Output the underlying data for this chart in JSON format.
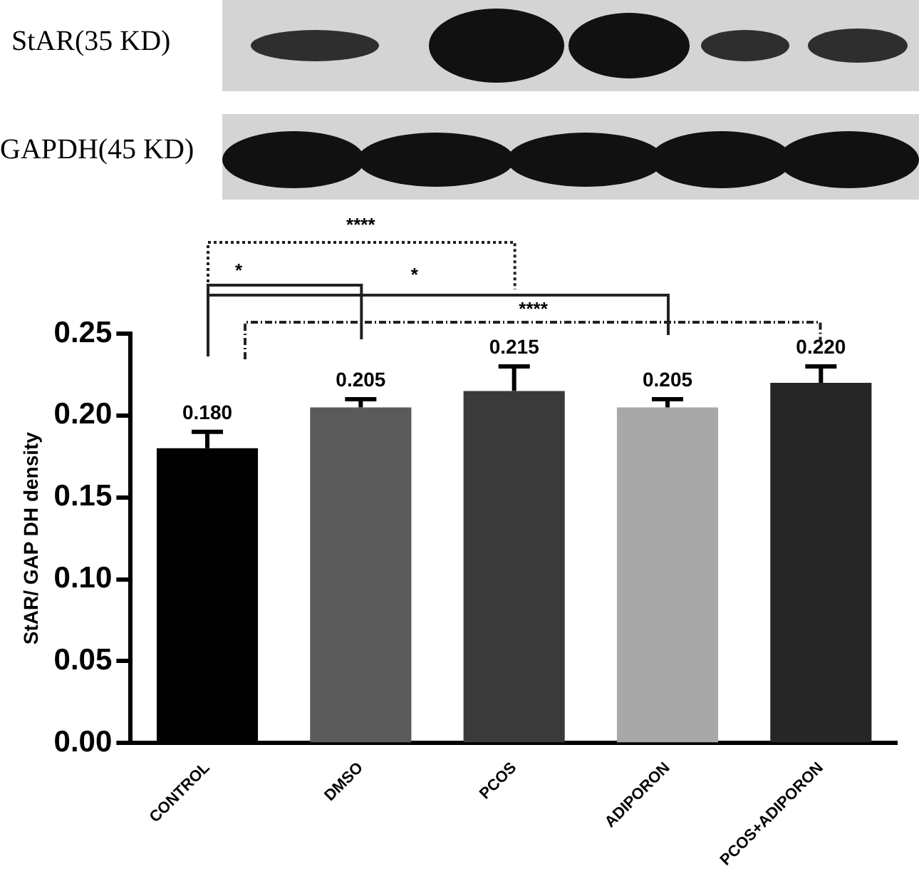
{
  "chart_data": {
    "type": "bar",
    "ylabel": "StAR/ GAP DH density",
    "categories": [
      "CONTROL",
      "DMSO",
      "PCOS",
      "ADIPORON",
      "PCOS+ADIPORON"
    ],
    "values": [
      0.18,
      0.205,
      0.215,
      0.205,
      0.22
    ],
    "colors": [
      "#000000",
      "#5a5a5a",
      "#3a3a3a",
      "#a8a8a8",
      "#262626"
    ],
    "errors": [
      [
        0.18,
        0.19
      ],
      [
        0.205,
        0.21
      ],
      [
        0.215,
        0.23
      ],
      [
        0.205,
        0.21
      ],
      [
        0.22,
        0.23
      ]
    ],
    "value_labels": [
      "0.180",
      "0.205",
      "0.215",
      "0.205",
      "0.220"
    ],
    "ylim": [
      0,
      0.25
    ],
    "yticks": [
      {
        "value": 0,
        "label": "0.00"
      },
      {
        "value": 0.05,
        "label": "0.05"
      },
      {
        "value": 0.1,
        "label": "0.10"
      },
      {
        "value": 0.15,
        "label": "0.15"
      },
      {
        "value": 0.2,
        "label": "0.20"
      },
      {
        "value": 0.25,
        "label": "0.25"
      }
    ],
    "grid": false,
    "annotations": [
      "StAR(35 KD)",
      "GAPDH(45 KD)",
      "****",
      "*",
      "*",
      "****"
    ]
  }
}
